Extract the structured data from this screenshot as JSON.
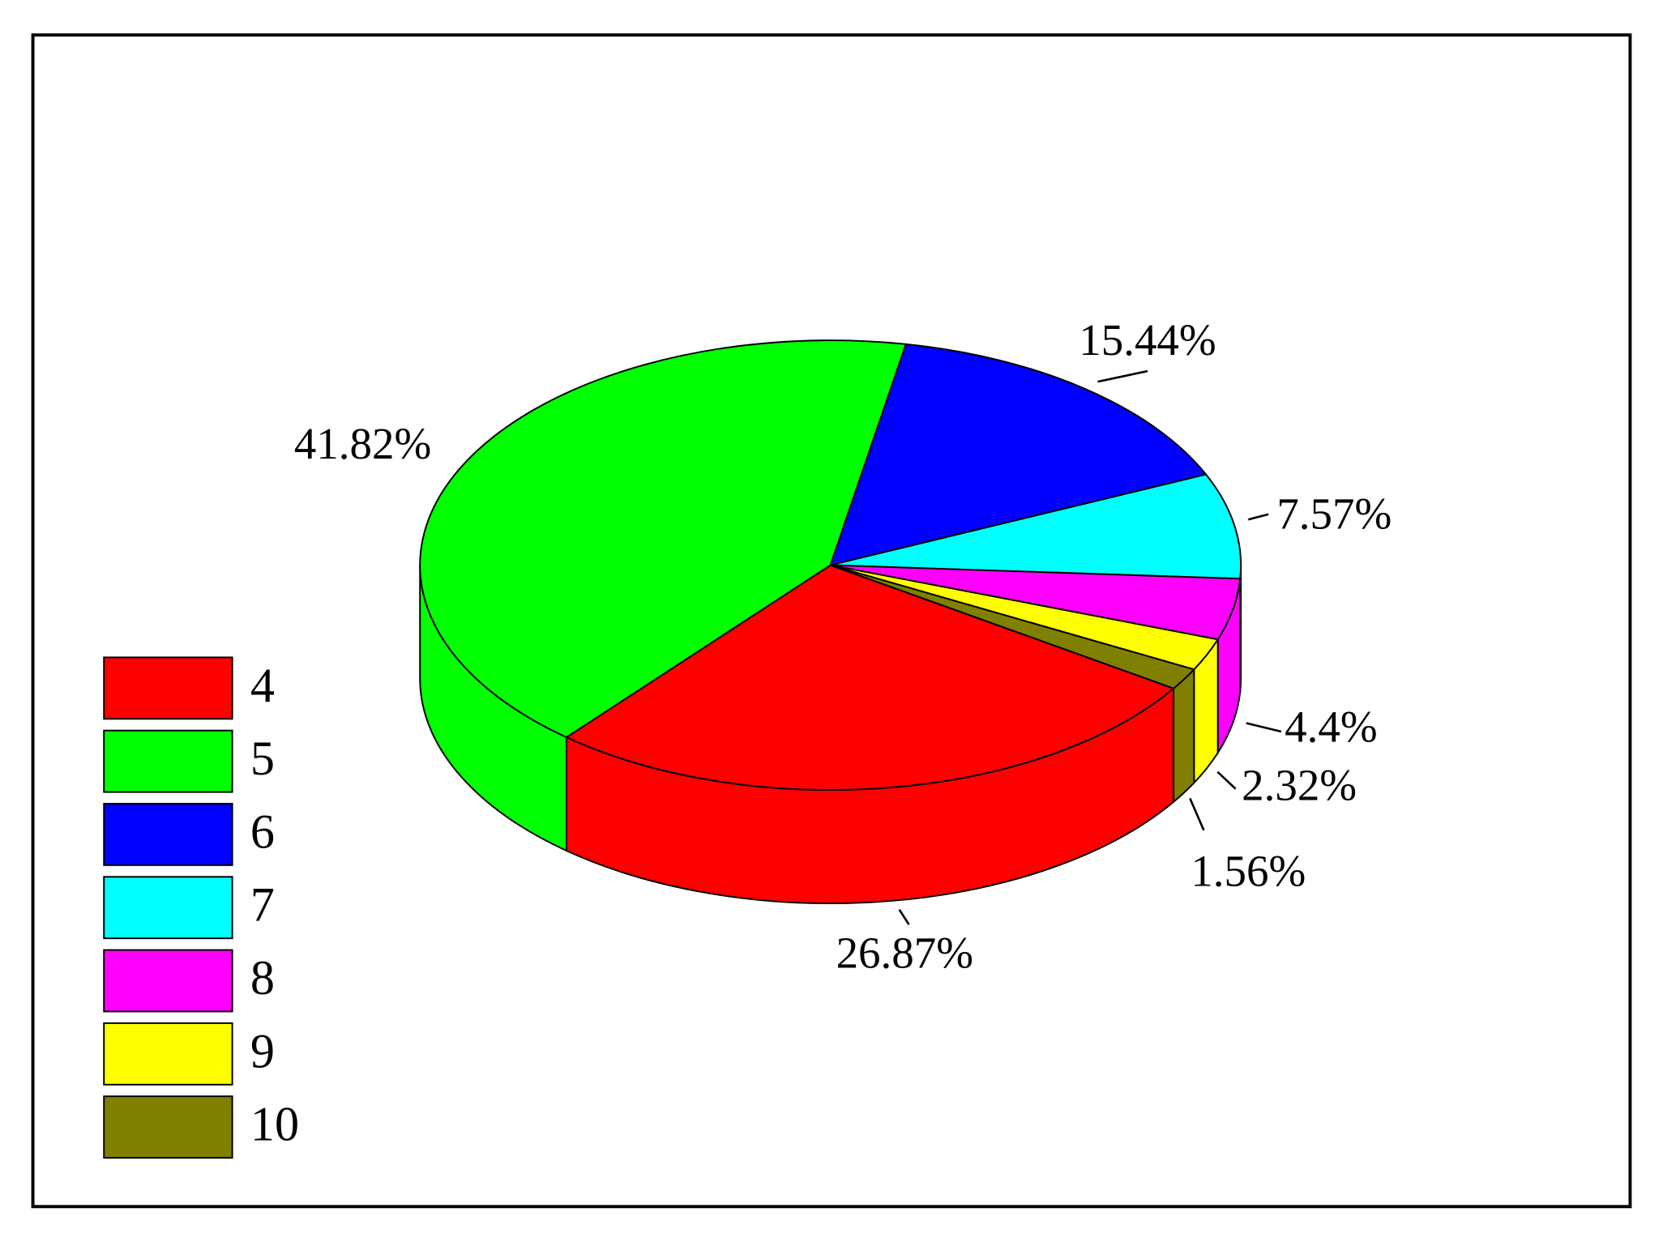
{
  "chart_data": {
    "type": "pie",
    "categories": [
      "4",
      "5",
      "6",
      "7",
      "8",
      "9",
      "10"
    ],
    "values": [
      26.87,
      41.82,
      15.44,
      7.57,
      4.4,
      2.32,
      1.56
    ],
    "value_labels": [
      "26.87%",
      "41.82%",
      "15.44%",
      "7.57%",
      "4.4%",
      "2.32%",
      "1.56%"
    ],
    "colors": [
      "#ff0000",
      "#00ff00",
      "#0000ff",
      "#00ffff",
      "#ff00ff",
      "#ffff00",
      "#808000"
    ],
    "legend": "lower left"
  }
}
